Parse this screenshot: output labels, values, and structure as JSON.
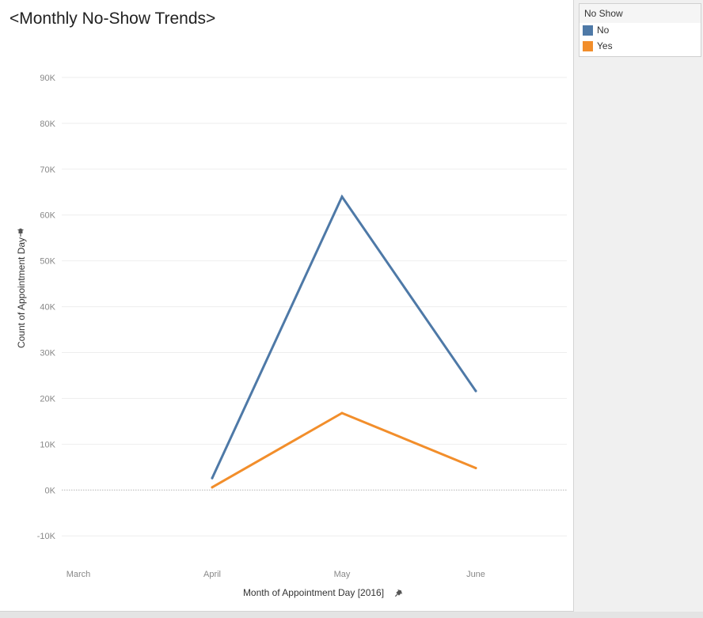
{
  "colors": {
    "no": "#4e79a7",
    "yes": "#f28e2b",
    "grid": "#eeeeee",
    "zero_line": "#b4b4b4",
    "tick_text": "#888888"
  },
  "legend": {
    "title": "No Show",
    "items": [
      {
        "label": "No",
        "color": "#4e79a7"
      },
      {
        "label": "Yes",
        "color": "#f28e2b"
      }
    ]
  },
  "icons": {
    "axis_pin": "pin-icon"
  },
  "chart_data": {
    "type": "line",
    "title": "<Monthly No-Show Trends>",
    "xlabel": "Month of Appointment Day [2016]",
    "ylabel": "Count of Appointment Day",
    "categories": [
      "March",
      "April",
      "May",
      "June"
    ],
    "series": [
      {
        "name": "No",
        "color": "#4e79a7",
        "points": [
          {
            "x": "April",
            "y": 2600
          },
          {
            "x": "May",
            "y": 64000
          },
          {
            "x": "June",
            "y": 21600
          }
        ]
      },
      {
        "name": "Yes",
        "color": "#f28e2b",
        "points": [
          {
            "x": "April",
            "y": 600
          },
          {
            "x": "May",
            "y": 16800
          },
          {
            "x": "June",
            "y": 4800
          }
        ]
      }
    ],
    "yticks": [
      -10000,
      0,
      10000,
      20000,
      30000,
      40000,
      50000,
      60000,
      70000,
      80000,
      90000
    ],
    "ytick_labels": [
      "-10K",
      "0K",
      "10K",
      "20K",
      "30K",
      "40K",
      "50K",
      "60K",
      "70K",
      "80K",
      "90K"
    ],
    "ylim": [
      -16000,
      100000
    ],
    "grid": true,
    "legend_position": "right"
  }
}
